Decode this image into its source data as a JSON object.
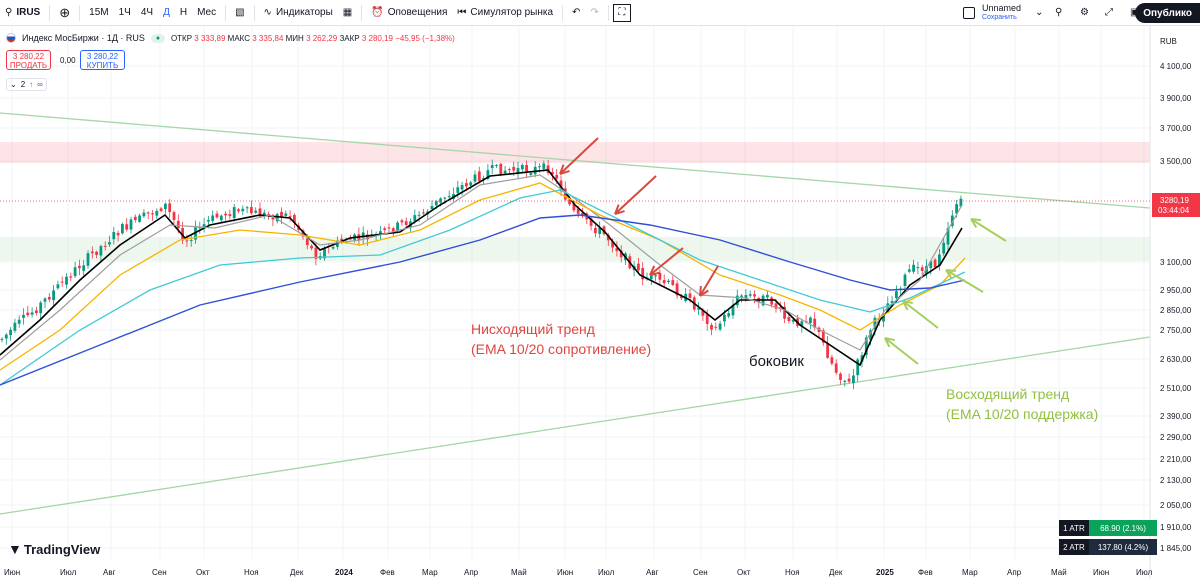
{
  "toolbar": {
    "symbol": "IRUS",
    "intervals": [
      "15М",
      "1Ч",
      "4Ч",
      "Д",
      "Н",
      "Мес"
    ],
    "active_interval": "Д",
    "indicators": "Индикаторы",
    "alerts": "Оповещения",
    "simulator": "Симулятор рынка",
    "layout_name": "Unnamed",
    "layout_saved": "Сохранить",
    "publish": "Опублико"
  },
  "legend": {
    "title": "Индекс МосБиржи · 1Д · RUS",
    "open_label": "ОТКР",
    "open": "3 333,89",
    "high_label": "МАКС",
    "high": "3 335,84",
    "low_label": "МИН",
    "low": "3 262,29",
    "close_label": "ЗАКР",
    "close": "3 280,19",
    "change": "−45,95 (−1,38%)",
    "sell_price": "3 280,22",
    "sell_label": "ПРОДАТЬ",
    "spread": "0,00",
    "buy_price": "3 280,22",
    "buy_label": "КУПИТЬ",
    "indicator_count": "2"
  },
  "price_axis": {
    "currency": "RUB",
    "ticks": [
      "4 100,00",
      "3 900,00",
      "3 700,00",
      "3 500,00",
      "3 100,00",
      "2 950,00",
      "2 850,00",
      "2 750,00",
      "2 630,00",
      "2 510,00",
      "2 390,00",
      "2 290,00",
      "2 210,00",
      "2 130,00",
      "2 050,00",
      "1 910,00",
      "1 845,00"
    ],
    "current_price": "3280,19",
    "countdown": "03:44:04"
  },
  "time_axis": [
    "Июн",
    "Июл",
    "Авг",
    "Сен",
    "Окт",
    "Ноя",
    "Дек",
    "2024",
    "Фев",
    "Мар",
    "Апр",
    "Май",
    "Июн",
    "Июл",
    "Авг",
    "Сен",
    "Окт",
    "Ноя",
    "Дек",
    "2025",
    "Фев",
    "Мар",
    "Апр",
    "Май",
    "Июн",
    "Июл"
  ],
  "annotations": {
    "downtrend": [
      "Нисходящий тренд",
      "(EMA 10/20 сопротивление)"
    ],
    "sideways": "боковик",
    "uptrend": [
      "Восходящий тренд",
      "(EMA 10/20 поддержка)"
    ]
  },
  "atr": [
    {
      "label": "1 ATR",
      "value": "68.90 (2.1%)"
    },
    {
      "label": "2 ATR",
      "value": "137.80 (4.2%)"
    }
  ],
  "logo": "TradingView",
  "colors": {
    "down": "#f23645",
    "up": "#089981",
    "ema10": "#000000",
    "ema20": "#9e9e9e",
    "ema50": "#f7b500",
    "ema100": "#41c9d6",
    "ema200": "#2f4fd8",
    "downtrend_text": "#e0453f",
    "uptrend_text": "#8fc13f"
  }
}
